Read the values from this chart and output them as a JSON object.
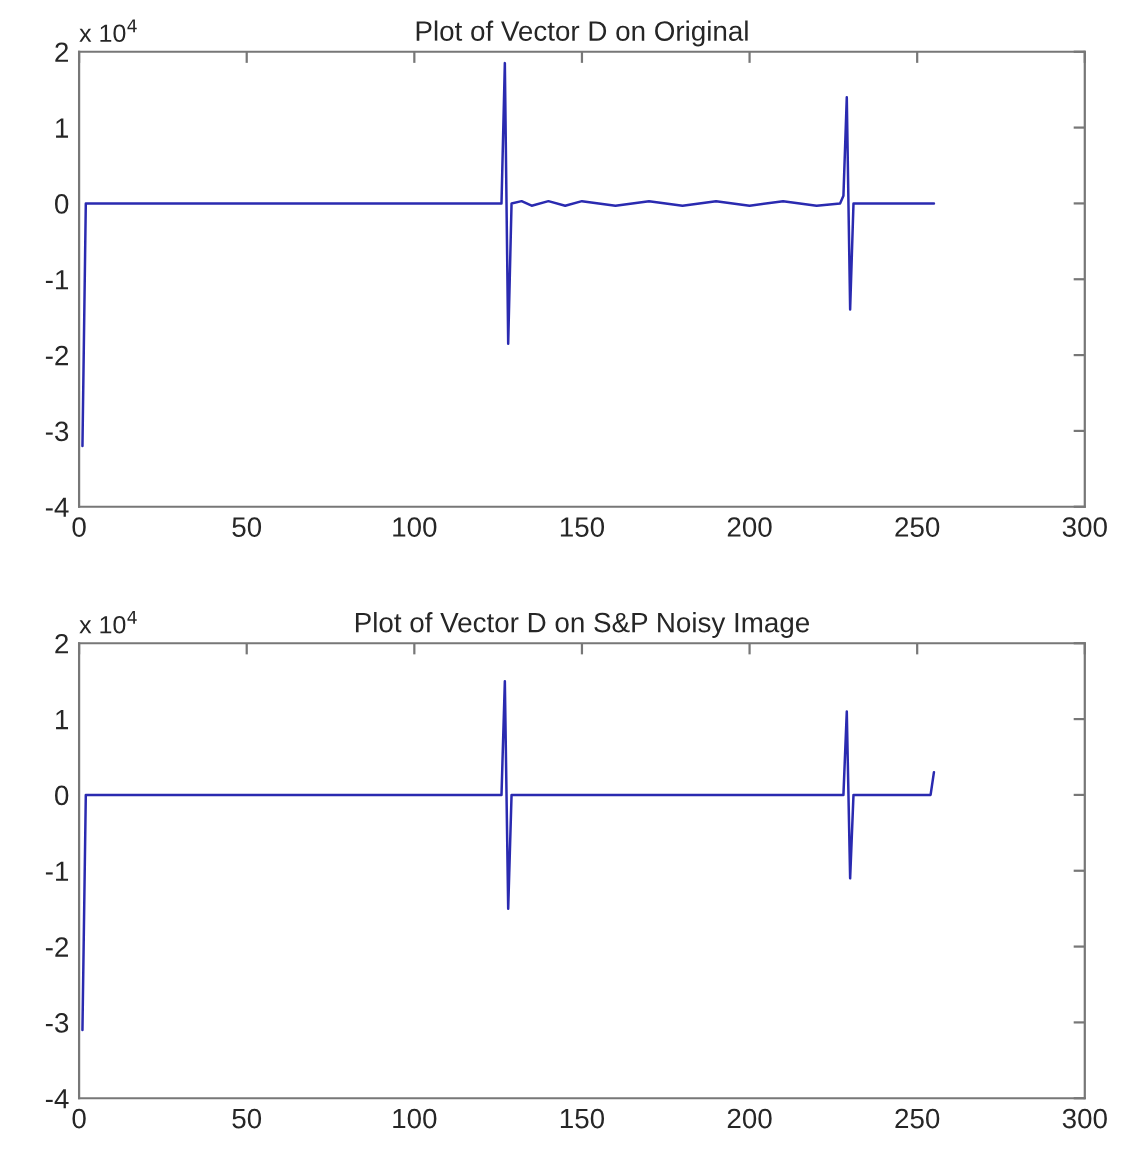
{
  "chart_data": [
    {
      "type": "line",
      "title": "Plot of Vector D on Original",
      "annotations": [
        "x 10$^{4}$"
      ],
      "xlim": [
        0,
        300
      ],
      "xticks": [
        0,
        50,
        100,
        150,
        200,
        250,
        300
      ],
      "ylim": [
        -4,
        2
      ],
      "yticks": [
        -4,
        -3,
        -2,
        -1,
        0,
        1,
        2
      ],
      "grid": false,
      "legend": false,
      "series": [
        {
          "color": "#2a2ab0",
          "x": [
            1,
            2,
            126,
            127,
            128,
            129,
            132,
            135,
            140,
            145,
            150,
            160,
            170,
            180,
            190,
            200,
            210,
            220,
            227,
            228,
            229,
            230,
            231,
            255
          ],
          "values": [
            -3.2,
            0,
            0,
            1.85,
            -1.85,
            0,
            0.03,
            -0.03,
            0.03,
            -0.03,
            0.03,
            -0.03,
            0.03,
            -0.03,
            0.03,
            -0.03,
            0.03,
            -0.03,
            0,
            0.1,
            1.4,
            -1.4,
            0,
            0
          ]
        }
      ]
    },
    {
      "type": "line",
      "title": "Plot of Vector D on S&P Noisy Image",
      "annotations": [
        "x 10$^{4}$"
      ],
      "xlim": [
        0,
        300
      ],
      "xticks": [
        0,
        50,
        100,
        150,
        200,
        250,
        300
      ],
      "ylim": [
        -4,
        2
      ],
      "yticks": [
        -4,
        -3,
        -2,
        -1,
        0,
        1,
        2
      ],
      "grid": false,
      "legend": false,
      "series": [
        {
          "color": "#2a2ab0",
          "x": [
            1,
            2,
            126,
            127,
            128,
            129,
            228,
            229,
            230,
            231,
            254,
            255
          ],
          "values": [
            -3.1,
            0,
            0,
            1.5,
            -1.5,
            0,
            0,
            1.1,
            -1.1,
            0,
            0,
            0.3
          ]
        }
      ]
    }
  ]
}
